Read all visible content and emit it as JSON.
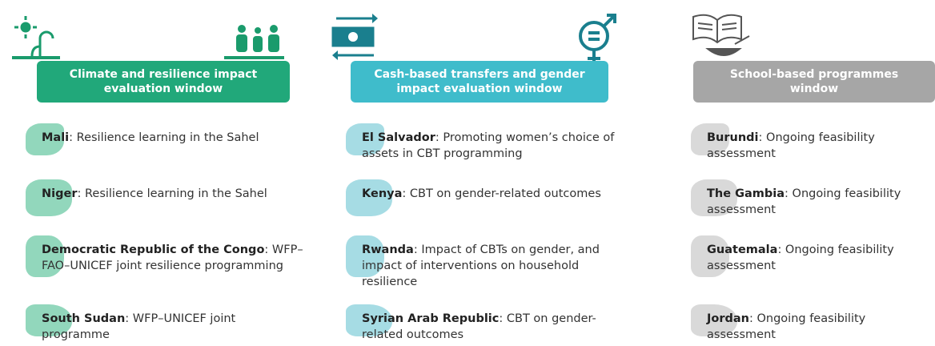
{
  "columns": [
    {
      "title": "Climate and resilience impact evaluation window",
      "items": [
        {
          "country": "Mali",
          "text": ": Resilience learning in the Sahel"
        },
        {
          "country": "Niger",
          "text": ": Resilience learning in the Sahel"
        },
        {
          "country": "Democratic Republic of the Congo",
          "text": ": WFP–FAO–UNICEF joint resilience programming"
        },
        {
          "country": "South Sudan",
          "text": ": WFP–UNICEF joint programme"
        }
      ]
    },
    {
      "title": "Cash-based transfers and gender impact evaluation window",
      "items": [
        {
          "country": "El Salvador",
          "text": ": Promoting women’s choice of assets in CBT programming"
        },
        {
          "country": "Kenya",
          "text": ": CBT on gender-related outcomes"
        },
        {
          "country": "Rwanda",
          "text": ": Impact of CBTs on gender, and impact of interventions on household resilience"
        },
        {
          "country": "Syrian Arab Republic",
          "text": ": CBT on gender-related outcomes"
        }
      ]
    },
    {
      "title": "School-based programmes window",
      "items": [
        {
          "country": "Burundi",
          "text": ": Ongoing feasibility assessment"
        },
        {
          "country": "The Gambia",
          "text": ": Ongoing feasibility assessment"
        },
        {
          "country": "Guatemala",
          "text": ": Ongoing feasibility assessment"
        },
        {
          "country": "Jordan",
          "text": ": Ongoing feasibility assessment"
        }
      ]
    }
  ]
}
